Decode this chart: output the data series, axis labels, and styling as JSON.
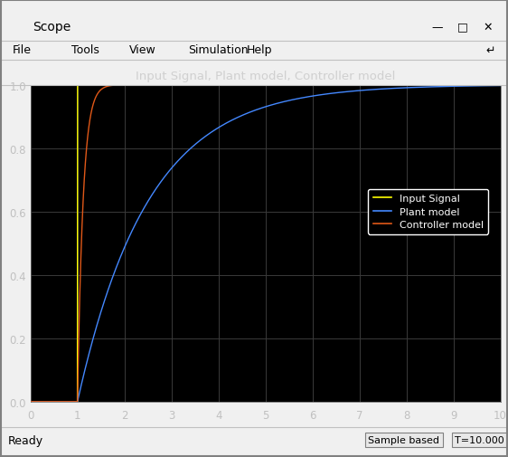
{
  "title": "Input Signal, Plant model, Controller model",
  "xlim": [
    0,
    10
  ],
  "ylim": [
    0,
    1.0
  ],
  "yticks": [
    0,
    0.2,
    0.4,
    0.6,
    0.8,
    1.0
  ],
  "xticks": [
    0,
    1,
    2,
    3,
    4,
    5,
    6,
    7,
    8,
    9,
    10
  ],
  "step_time": 1.0,
  "bg_color": "#000000",
  "outer_bg": "#1a1a1a",
  "grid_color": "#3a3a3a",
  "title_color": "#d0d0d0",
  "tick_color": "#c0c0c0",
  "input_color": "#ffff00",
  "plant_color": "#4488ff",
  "controller_color": "#e05818",
  "legend_bg": "#000000",
  "legend_edge": "#ffffff",
  "legend_text_color": "#ffffff",
  "plant_tau": 1.5,
  "controller_tau": 0.12,
  "window_bg": "#f0f0f0",
  "chrome_bg": "#f0f0f0",
  "chrome_dark": "#383838",
  "separator_color": "#a0a0a0"
}
